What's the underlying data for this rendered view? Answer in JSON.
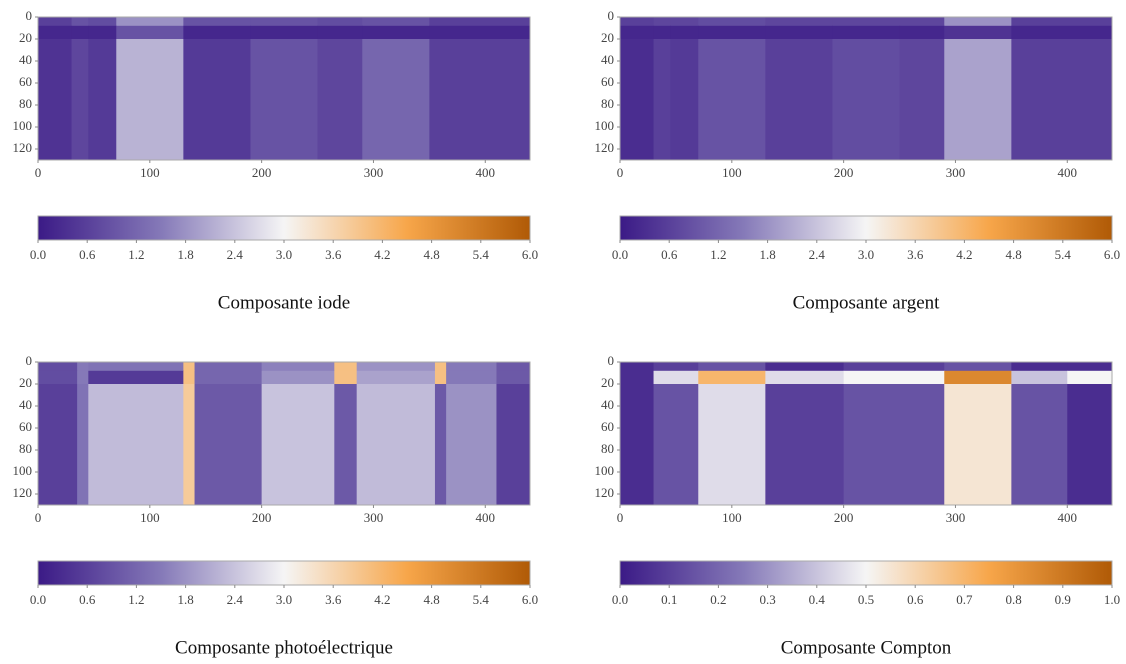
{
  "chart_data": [
    {
      "type": "heatmap",
      "title": "Composante iode",
      "x_edges": [
        0,
        30,
        45,
        70,
        130,
        190,
        250,
        290,
        350,
        440
      ],
      "y_edges": [
        0,
        8,
        20,
        130
      ],
      "values": [
        [
          0.6,
          0.9,
          0.8,
          1.8,
          0.9,
          0.9,
          0.8,
          0.9,
          0.6
        ],
        [
          0.2,
          0.2,
          0.2,
          0.9,
          0.2,
          0.2,
          0.2,
          0.2,
          0.2
        ],
        [
          0.4,
          0.7,
          0.5,
          2.2,
          0.5,
          0.9,
          0.7,
          1.2,
          0.6
        ]
      ],
      "xlim": [
        0,
        440
      ],
      "ylim": [
        0,
        130
      ],
      "xticks": [
        0,
        100,
        200,
        300,
        400
      ],
      "yticks": [
        0,
        20,
        40,
        60,
        80,
        100,
        120
      ],
      "clim": [
        0,
        6
      ],
      "colormap": [
        "#3b1a86",
        "#8579b8",
        "#f5f5f5",
        "#f7a64a",
        "#b05a06"
      ],
      "cticks": [
        {
          "value": 0,
          "label": "0.0"
        },
        {
          "value": 0.6,
          "label": "0.6"
        },
        {
          "value": 1.2,
          "label": "1.2"
        },
        {
          "value": 1.8,
          "label": "1.8"
        },
        {
          "value": 2.4,
          "label": "2.4"
        },
        {
          "value": 3,
          "label": "3.0"
        },
        {
          "value": 3.6,
          "label": "3.6"
        },
        {
          "value": 4.2,
          "label": "4.2"
        },
        {
          "value": 4.8,
          "label": "4.8"
        },
        {
          "value": 5.4,
          "label": "5.4"
        },
        {
          "value": 6,
          "label": "6.0"
        }
      ]
    },
    {
      "type": "heatmap",
      "title": "Composante argent",
      "x_edges": [
        0,
        30,
        45,
        70,
        130,
        190,
        250,
        290,
        350,
        440
      ],
      "y_edges": [
        0,
        8,
        20,
        130
      ],
      "values": [
        [
          0.6,
          0.7,
          0.7,
          0.8,
          0.7,
          0.7,
          0.7,
          1.8,
          0.6
        ],
        [
          0.2,
          0.2,
          0.2,
          0.2,
          0.2,
          0.2,
          0.2,
          0.4,
          0.2
        ],
        [
          0.3,
          0.6,
          0.5,
          0.9,
          0.6,
          0.8,
          0.7,
          2.0,
          0.6
        ]
      ],
      "xlim": [
        0,
        440
      ],
      "ylim": [
        0,
        130
      ],
      "xticks": [
        0,
        100,
        200,
        300,
        400
      ],
      "yticks": [
        0,
        20,
        40,
        60,
        80,
        100,
        120
      ],
      "clim": [
        0,
        6
      ],
      "colormap": [
        "#3b1a86",
        "#8579b8",
        "#f5f5f5",
        "#f7a64a",
        "#b05a06"
      ],
      "cticks": [
        {
          "value": 0,
          "label": "0.0"
        },
        {
          "value": 0.6,
          "label": "0.6"
        },
        {
          "value": 1.2,
          "label": "1.2"
        },
        {
          "value": 1.8,
          "label": "1.8"
        },
        {
          "value": 2.4,
          "label": "2.4"
        },
        {
          "value": 3,
          "label": "3.0"
        },
        {
          "value": 3.6,
          "label": "3.6"
        },
        {
          "value": 4.2,
          "label": "4.2"
        },
        {
          "value": 4.8,
          "label": "4.8"
        },
        {
          "value": 5.4,
          "label": "5.4"
        },
        {
          "value": 6,
          "label": "6.0"
        }
      ]
    },
    {
      "type": "heatmap",
      "title": "Composante photoélectrique",
      "x_edges": [
        0,
        35,
        45,
        130,
        140,
        200,
        265,
        285,
        355,
        365,
        410,
        440
      ],
      "y_edges": [
        0,
        8,
        20,
        130
      ],
      "values": [
        [
          0.8,
          1.5,
          1.4,
          4.0,
          1.2,
          1.6,
          4.0,
          1.8,
          4.0,
          1.5,
          1.0
        ],
        [
          0.8,
          1.5,
          0.5,
          4.0,
          1.2,
          1.8,
          4.0,
          2.0,
          4.0,
          1.5,
          1.0
        ],
        [
          0.6,
          1.4,
          2.3,
          3.8,
          1.0,
          2.4,
          1.0,
          2.3,
          1.0,
          1.8,
          0.6
        ]
      ],
      "xlim": [
        0,
        440
      ],
      "ylim": [
        0,
        130
      ],
      "xticks": [
        0,
        100,
        200,
        300,
        400
      ],
      "yticks": [
        0,
        20,
        40,
        60,
        80,
        100,
        120
      ],
      "clim": [
        0,
        6
      ],
      "colormap": [
        "#3b1a86",
        "#8579b8",
        "#f5f5f5",
        "#f7a64a",
        "#b05a06"
      ],
      "cticks": [
        {
          "value": 0,
          "label": "0.0"
        },
        {
          "value": 0.6,
          "label": "0.6"
        },
        {
          "value": 1.2,
          "label": "1.2"
        },
        {
          "value": 1.8,
          "label": "1.8"
        },
        {
          "value": 2.4,
          "label": "2.4"
        },
        {
          "value": 3,
          "label": "3.0"
        },
        {
          "value": 3.6,
          "label": "3.6"
        },
        {
          "value": 4.2,
          "label": "4.2"
        },
        {
          "value": 4.8,
          "label": "4.8"
        },
        {
          "value": 5.4,
          "label": "5.4"
        },
        {
          "value": 6,
          "label": "6.0"
        }
      ]
    },
    {
      "type": "heatmap",
      "title": "Composante Compton",
      "x_edges": [
        0,
        30,
        70,
        130,
        200,
        290,
        350,
        400,
        440
      ],
      "y_edges": [
        0,
        8,
        20,
        130
      ],
      "values": [
        [
          0.05,
          0.1,
          0.15,
          0.05,
          0.1,
          0.15,
          0.05,
          0.05
        ],
        [
          0.05,
          0.45,
          0.7,
          0.45,
          0.5,
          0.85,
          0.4,
          0.5
        ],
        [
          0.05,
          0.15,
          0.45,
          0.1,
          0.15,
          0.55,
          0.15,
          0.05
        ]
      ],
      "xlim": [
        0,
        440
      ],
      "ylim": [
        0,
        130
      ],
      "xticks": [
        0,
        100,
        200,
        300,
        400
      ],
      "yticks": [
        0,
        20,
        40,
        60,
        80,
        100,
        120
      ],
      "clim": [
        0,
        1
      ],
      "colormap": [
        "#3b1a86",
        "#8579b8",
        "#f5f5f5",
        "#f7a64a",
        "#b05a06"
      ],
      "cticks": [
        {
          "value": 0,
          "label": "0.0"
        },
        {
          "value": 0.1,
          "label": "0.1"
        },
        {
          "value": 0.2,
          "label": "0.2"
        },
        {
          "value": 0.3,
          "label": "0.3"
        },
        {
          "value": 0.4,
          "label": "0.4"
        },
        {
          "value": 0.5,
          "label": "0.5"
        },
        {
          "value": 0.6,
          "label": "0.6"
        },
        {
          "value": 0.7,
          "label": "0.7"
        },
        {
          "value": 0.8,
          "label": "0.8"
        },
        {
          "value": 0.9,
          "label": "0.9"
        },
        {
          "value": 1,
          "label": "1.0"
        }
      ]
    }
  ]
}
